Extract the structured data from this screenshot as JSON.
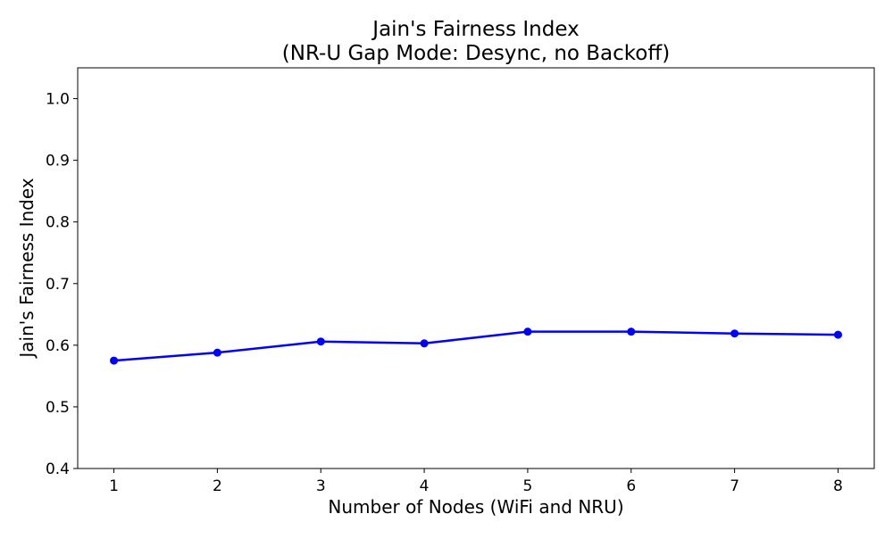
{
  "chart_data": {
    "type": "line",
    "title_line1": "Jain's Fairness Index",
    "title_line2": "(NR-U Gap Mode: Desync, no Backoff)",
    "xlabel": "Number of Nodes (WiFi and NRU)",
    "ylabel": "Jain's Fairness Index",
    "xlim": [
      0.65,
      8.35
    ],
    "ylim": [
      0.4,
      1.05
    ],
    "x_ticks": [
      1,
      2,
      3,
      4,
      5,
      6,
      7,
      8
    ],
    "y_ticks": [
      "0.4",
      "0.5",
      "0.6",
      "0.7",
      "0.8",
      "0.9",
      "1.0"
    ],
    "grid": false,
    "series": [
      {
        "color": "#0000ff",
        "marker": "circle",
        "x": [
          1,
          2,
          3,
          4,
          5,
          6,
          7,
          8
        ],
        "values": [
          0.575,
          0.588,
          0.606,
          0.603,
          0.622,
          0.622,
          0.619,
          0.617
        ]
      }
    ]
  }
}
